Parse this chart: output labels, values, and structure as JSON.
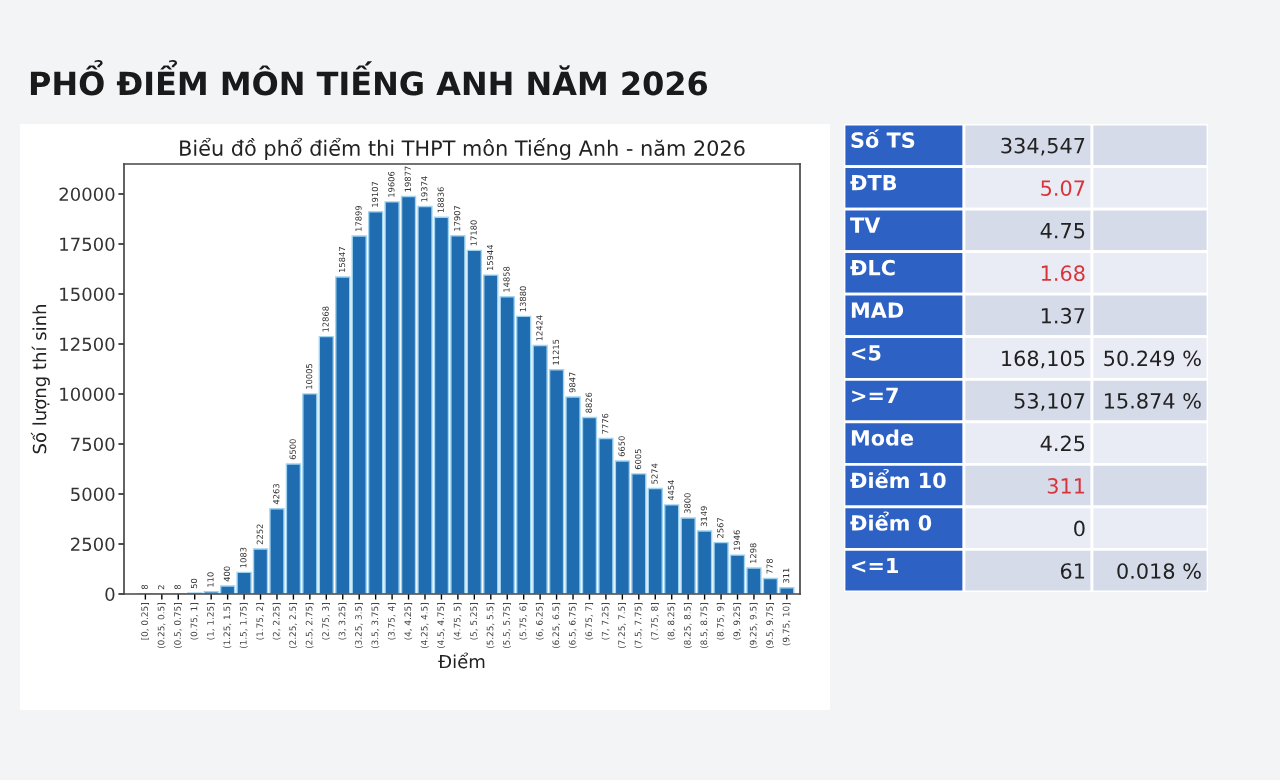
{
  "chart_data": [
    {
      "type": "bar",
      "title": "Biểu đồ phổ điểm thi THPT môn Tiếng Anh - năm 2026",
      "xlabel": "Điểm",
      "ylabel": "Số lượng thí sinh",
      "annotations": [
        "PHỔ ĐIỂM MÔN TIẾNG ANH NĂM 2026"
      ],
      "categories": [
        "[0, 0.25]",
        "(0.25, 0.5]",
        "(0.5, 0.75]",
        "(0.75, 1]",
        "(1, 1.25]",
        "(1.25, 1.5]",
        "(1.5, 1.75]",
        "(1.75, 2]",
        "(2, 2.25]",
        "(2.25, 2.5]",
        "(2.5, 2.75]",
        "(2.75, 3]",
        "(3, 3.25]",
        "(3.25, 3.5]",
        "(3.5, 3.75]",
        "(3.75, 4]",
        "(4, 4.25]",
        "(4.25, 4.5]",
        "(4.5, 4.75]",
        "(4.75, 5]",
        "(5, 5.25]",
        "(5.25, 5.5]",
        "(5.5, 5.75]",
        "(5.75, 6]",
        "(6, 6.25]",
        "(6.25, 6.5]",
        "(6.5, 6.75]",
        "(6.75, 7]",
        "(7, 7.25]",
        "(7.25, 7.5]",
        "(7.5, 7.75]",
        "(7.75, 8]",
        "(8, 8.25]",
        "(8.25, 8.5]",
        "(8.5, 8.75]",
        "(8.75, 9]",
        "(9, 9.25]",
        "(9.25, 9.5]",
        "(9.5, 9.75]",
        "(9.75, 10]"
      ],
      "values": [
        8,
        2,
        8,
        50,
        110,
        400,
        1083,
        2252,
        4263,
        6500,
        10005,
        12868,
        15847,
        17899,
        19107,
        19606,
        19877,
        19374,
        18836,
        17907,
        17180,
        15944,
        14858,
        13880,
        12424,
        11215,
        9847,
        8826,
        7776,
        6650,
        6005,
        5274,
        4454,
        3800,
        3149,
        2567,
        1946,
        1298,
        778,
        311
      ],
      "color": "#1f6db0",
      "data_labels": true,
      "ylim": [
        0,
        21500
      ],
      "yticks": [
        0,
        2500,
        5000,
        7500,
        10000,
        12500,
        15000,
        17500,
        20000
      ],
      "grid": false,
      "legend": false
    },
    {
      "type": "other",
      "y_categories": [
        "Số TS",
        "ĐTB",
        "TV",
        "ĐLC",
        "MAD",
        "<5",
        ">=7",
        "Mode",
        "Điểm 10",
        "Điểm 0",
        "<=1"
      ],
      "cell_labels": [
        [
          "334,547",
          null
        ],
        [
          "5.07",
          null
        ],
        [
          "4.75",
          null
        ],
        [
          "1.68",
          null
        ],
        [
          "1.37",
          null
        ],
        [
          "168,105",
          "50.249 %"
        ],
        [
          "53,107",
          "15.874 %"
        ],
        [
          "4.25",
          null
        ],
        [
          "311",
          null
        ],
        [
          "0",
          null
        ],
        [
          "61",
          "0.018 %"
        ]
      ],
      "colors": [
        "#222222",
        "#d9343a",
        "#222222",
        "#d9343a",
        "#222222",
        "#222222",
        "#222222",
        "#222222",
        "#d9343a",
        "#222222",
        "#222222"
      ],
      "color": "#2d62c4"
    }
  ]
}
